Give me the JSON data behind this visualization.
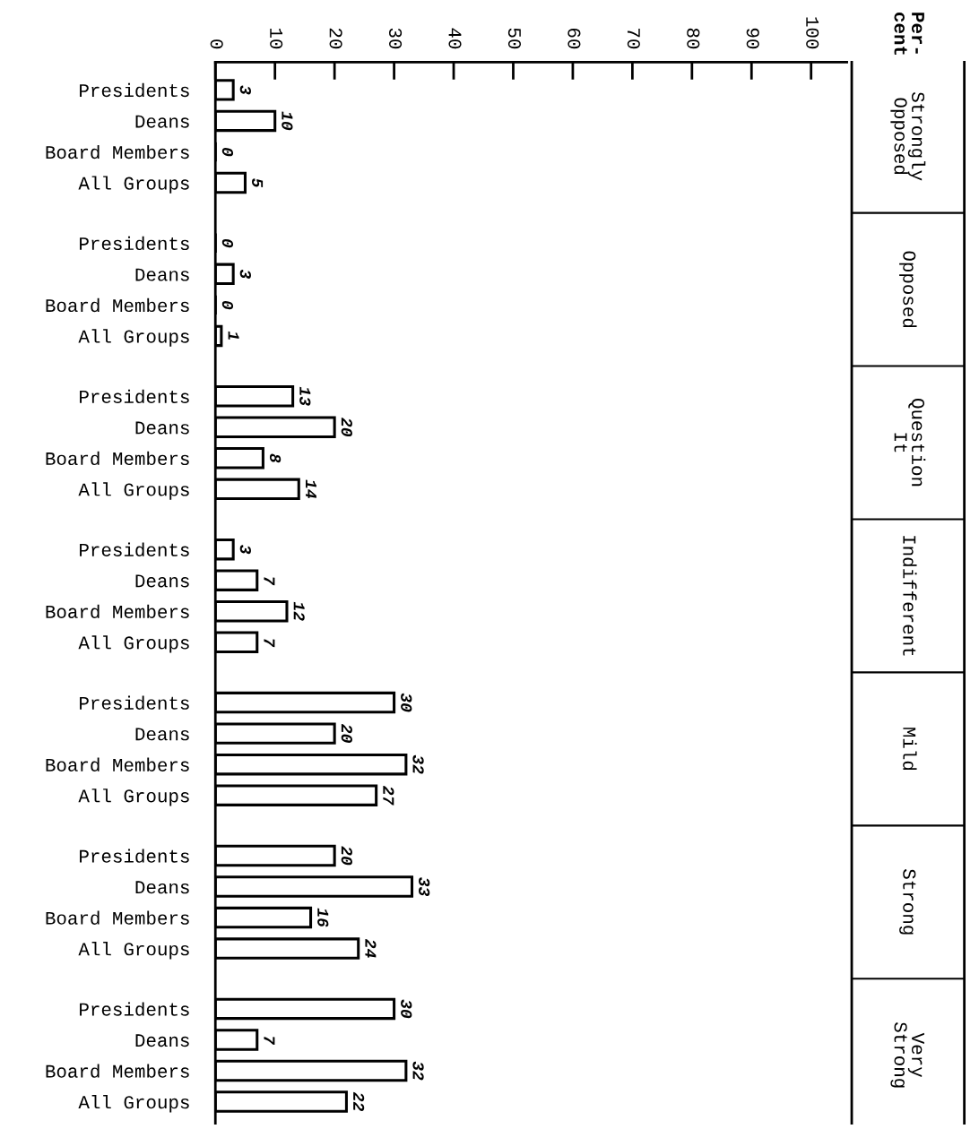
{
  "chart_data": {
    "type": "bar",
    "orientation": "horizontal",
    "categories": [
      "Presidents",
      "Deans",
      "Board Members",
      "All Groups",
      "Presidents",
      "Deans",
      "Board Members",
      "All Groups",
      "Presidents",
      "Deans",
      "Board Members",
      "All Groups",
      "Presidents",
      "Deans",
      "Board Members",
      "All Groups",
      "Presidents",
      "Deans",
      "Board Members",
      "All Groups",
      "Presidents",
      "Deans",
      "Board Members",
      "All Groups",
      "Presidents",
      "Deans",
      "Board Members",
      "All Groups"
    ],
    "values": [
      3,
      10,
      0,
      5,
      0,
      3,
      0,
      1,
      13,
      20,
      8,
      14,
      3,
      7,
      12,
      7,
      30,
      20,
      32,
      27,
      20,
      33,
      16,
      24,
      30,
      7,
      32,
      22
    ],
    "color": "#ffffff",
    "xlim": [
      0,
      106
    ],
    "xticks": [
      0,
      10,
      20,
      30,
      40,
      50,
      60,
      70,
      80,
      90,
      100
    ],
    "data_labels": true,
    "grid": false,
    "legend": false,
    "annotations": [
      "Per-\ncent",
      "Strongly\nOpposed",
      "Opposed",
      "Question\nIt",
      "Indifferent",
      "Mild",
      "Strong",
      "Very\nStrong"
    ]
  }
}
